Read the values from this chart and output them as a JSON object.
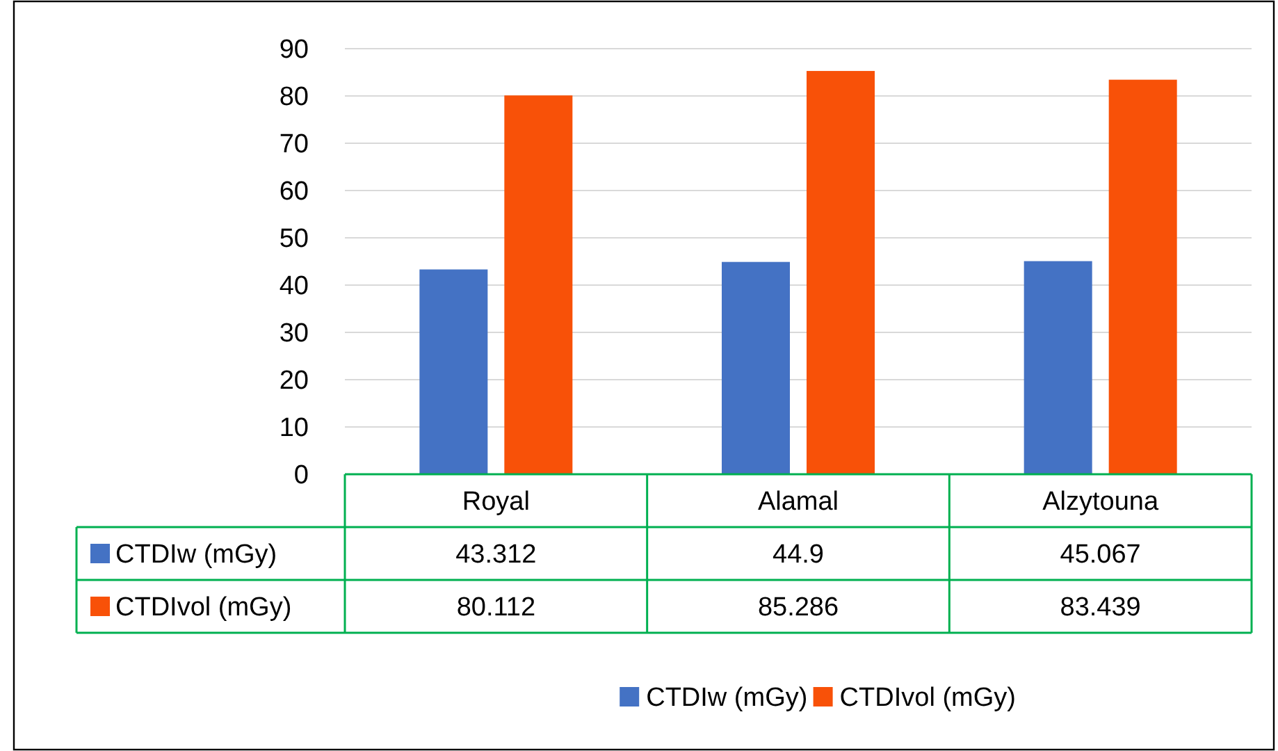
{
  "chart_data": {
    "type": "bar",
    "categories": [
      "Royal",
      "Alamal",
      "Alzytouna"
    ],
    "series": [
      {
        "name": "CTDIw (mGy)",
        "color": "#4472c4",
        "values": [
          43.312,
          44.9,
          45.067
        ]
      },
      {
        "name": "CTDIvol (mGy)",
        "color": "#f85108",
        "values": [
          80.112,
          85.286,
          83.439
        ]
      }
    ],
    "ylim": [
      0,
      90
    ],
    "yticks": [
      0,
      10,
      20,
      30,
      40,
      50,
      60,
      70,
      80,
      90
    ],
    "grid": "y",
    "legend": "bottom",
    "data_labels": true
  }
}
